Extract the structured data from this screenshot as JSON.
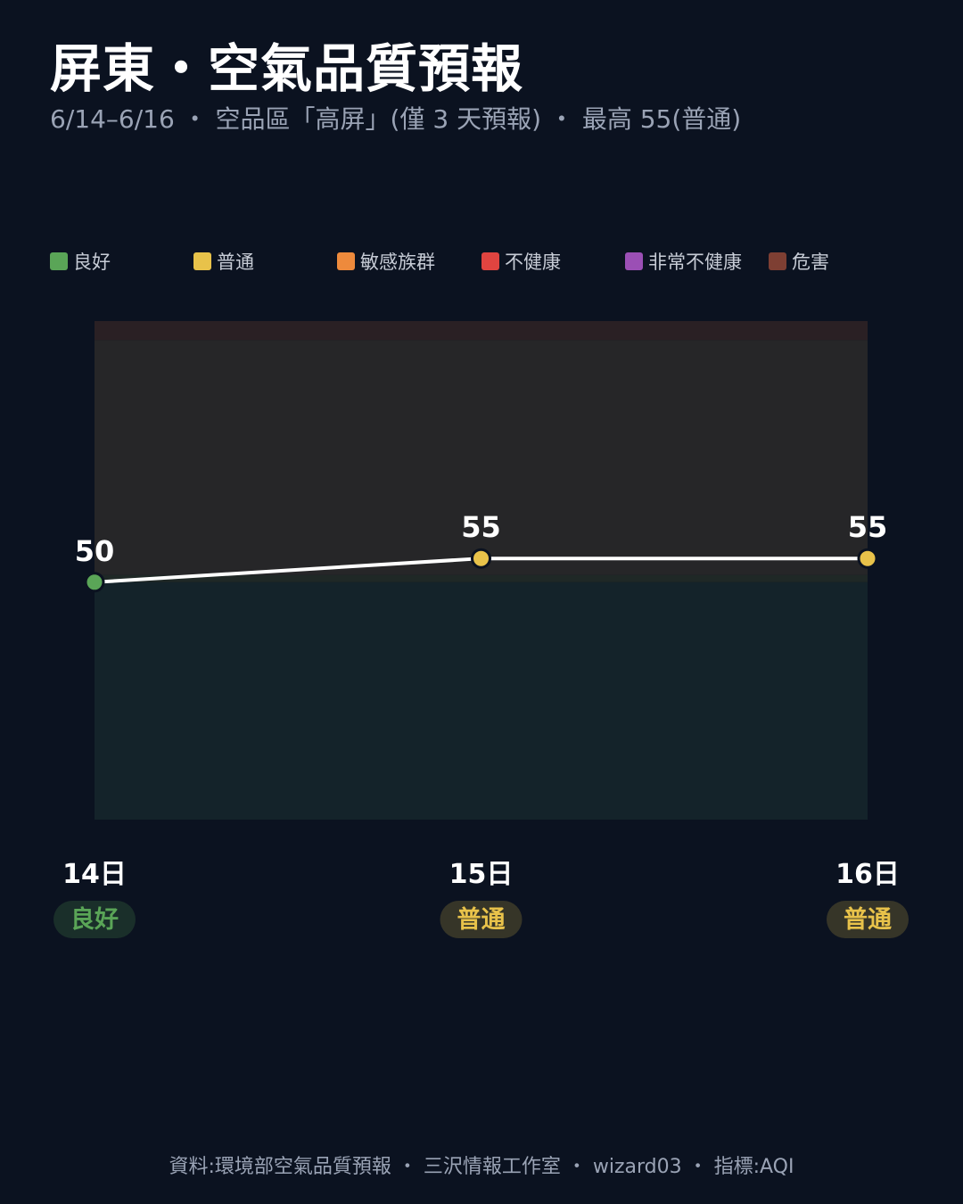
{
  "header": {
    "title": "屏東・空氣品質預報",
    "subtitle": "6/14–6/16 ・ 空品區「高屏」(僅 3 天預報) ・ 最高 55(普通)"
  },
  "legend": [
    {
      "label": "良好",
      "color": "#5aa557"
    },
    {
      "label": "普通",
      "color": "#e8c24a"
    },
    {
      "label": "敏感族群",
      "color": "#ee8a3c"
    },
    {
      "label": "不健康",
      "color": "#e04440"
    },
    {
      "label": "非常不健康",
      "color": "#9b4fb5"
    },
    {
      "label": "危害",
      "color": "#7e3f33"
    }
  ],
  "chart_data": {
    "type": "line",
    "x": [
      "14日",
      "15日",
      "16日"
    ],
    "values": [
      50,
      55,
      55
    ],
    "categories": [
      "良好",
      "普通",
      "普通"
    ],
    "category_colors": [
      "#5aa557",
      "#e8c24a",
      "#e8c24a"
    ],
    "ylim": [
      0,
      105
    ],
    "bands": [
      {
        "from": 0,
        "to": 50,
        "color": "#14232a"
      },
      {
        "from": 50,
        "to": 51.5,
        "color": "#1f2826"
      },
      {
        "from": 51.5,
        "to": 101,
        "color": "#262628"
      },
      {
        "from": 101,
        "to": 105,
        "color": "#2a2024"
      }
    ],
    "line_color": "#ffffff",
    "legend_position": "top-left",
    "grid": false
  },
  "footer": "資料:環境部空氣品質預報 ・ 三沢情報工作室 ・ wizard03 ・ 指標:AQI"
}
